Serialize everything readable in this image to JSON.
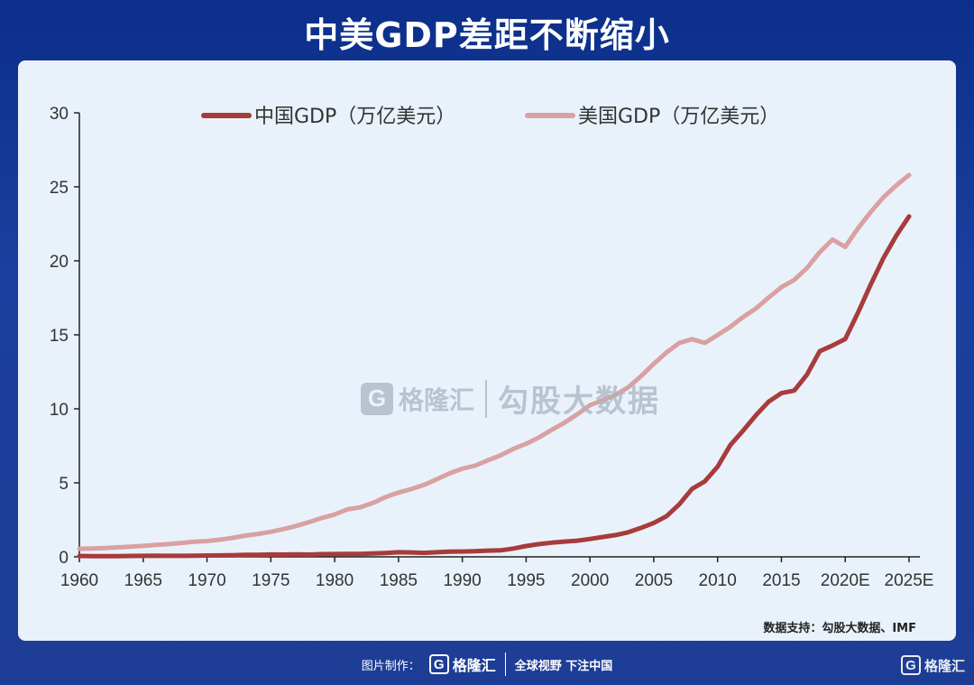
{
  "title": "中美GDP差距不断缩小",
  "source": "数据支持：勾股大数据、IMF",
  "watermark": {
    "logo_letter": "G",
    "brand": "格隆汇",
    "text": "勾股大数据"
  },
  "footer": {
    "made_by": "图片制作：",
    "logo_letter": "G",
    "brand": "格隆汇",
    "slogan": "全球视野 下注中国"
  },
  "corner": {
    "logo_letter": "G",
    "brand": "格隆汇"
  },
  "colors": {
    "china": "#a83b3b",
    "usa": "#d9a1a1",
    "background": "#0b2f8a",
    "panel": "#e9f2fb"
  },
  "chart_data": {
    "type": "line",
    "title": "",
    "xlabel": "",
    "ylabel": "",
    "ylim": [
      0,
      30
    ],
    "yticks": [
      "0",
      "5",
      "10",
      "15",
      "20",
      "25",
      "30"
    ],
    "xticks": [
      "1960",
      "1965",
      "1970",
      "1975",
      "1980",
      "1985",
      "1990",
      "1995",
      "2000",
      "2005",
      "2010",
      "2015",
      "2020E",
      "2025E"
    ],
    "legend": "top",
    "grid": false,
    "x": [
      1960,
      1961,
      1962,
      1963,
      1964,
      1965,
      1966,
      1967,
      1968,
      1969,
      1970,
      1971,
      1972,
      1973,
      1974,
      1975,
      1976,
      1977,
      1978,
      1979,
      1980,
      1981,
      1982,
      1983,
      1984,
      1985,
      1986,
      1987,
      1988,
      1989,
      1990,
      1991,
      1992,
      1993,
      1994,
      1995,
      1996,
      1997,
      1998,
      1999,
      2000,
      2001,
      2002,
      2003,
      2004,
      2005,
      2006,
      2007,
      2008,
      2009,
      2010,
      2011,
      2012,
      2013,
      2014,
      2015,
      2016,
      2017,
      2018,
      2019,
      2020,
      2021,
      2022,
      2023,
      2024,
      2025
    ],
    "series": [
      {
        "name": "中国GDP（万亿美元）",
        "values": [
          0.06,
          0.05,
          0.05,
          0.05,
          0.06,
          0.07,
          0.08,
          0.07,
          0.07,
          0.08,
          0.09,
          0.1,
          0.11,
          0.14,
          0.14,
          0.16,
          0.15,
          0.17,
          0.15,
          0.18,
          0.19,
          0.2,
          0.2,
          0.23,
          0.26,
          0.31,
          0.3,
          0.27,
          0.31,
          0.35,
          0.36,
          0.38,
          0.42,
          0.44,
          0.56,
          0.73,
          0.86,
          0.96,
          1.03,
          1.09,
          1.21,
          1.34,
          1.47,
          1.66,
          1.96,
          2.29,
          2.75,
          3.55,
          4.59,
          5.1,
          6.09,
          7.55,
          8.53,
          9.57,
          10.48,
          11.06,
          11.23,
          12.31,
          13.89,
          14.28,
          14.72,
          16.5,
          18.4,
          20.2,
          21.7,
          23.0
        ]
      },
      {
        "name": "美国GDP（万亿美元）",
        "values": [
          0.54,
          0.56,
          0.6,
          0.64,
          0.69,
          0.74,
          0.81,
          0.86,
          0.94,
          1.02,
          1.07,
          1.16,
          1.28,
          1.43,
          1.55,
          1.69,
          1.88,
          2.09,
          2.35,
          2.63,
          2.86,
          3.21,
          3.35,
          3.64,
          4.04,
          4.34,
          4.58,
          4.86,
          5.24,
          5.64,
          5.96,
          6.16,
          6.52,
          6.86,
          7.29,
          7.64,
          8.07,
          8.58,
          9.06,
          9.63,
          10.25,
          10.58,
          10.94,
          11.46,
          12.21,
          13.04,
          13.81,
          14.45,
          14.71,
          14.45,
          14.99,
          15.54,
          16.2,
          16.78,
          17.52,
          18.22,
          18.71,
          19.52,
          20.58,
          21.43,
          20.94,
          22.2,
          23.3,
          24.3,
          25.1,
          25.8
        ]
      }
    ]
  }
}
